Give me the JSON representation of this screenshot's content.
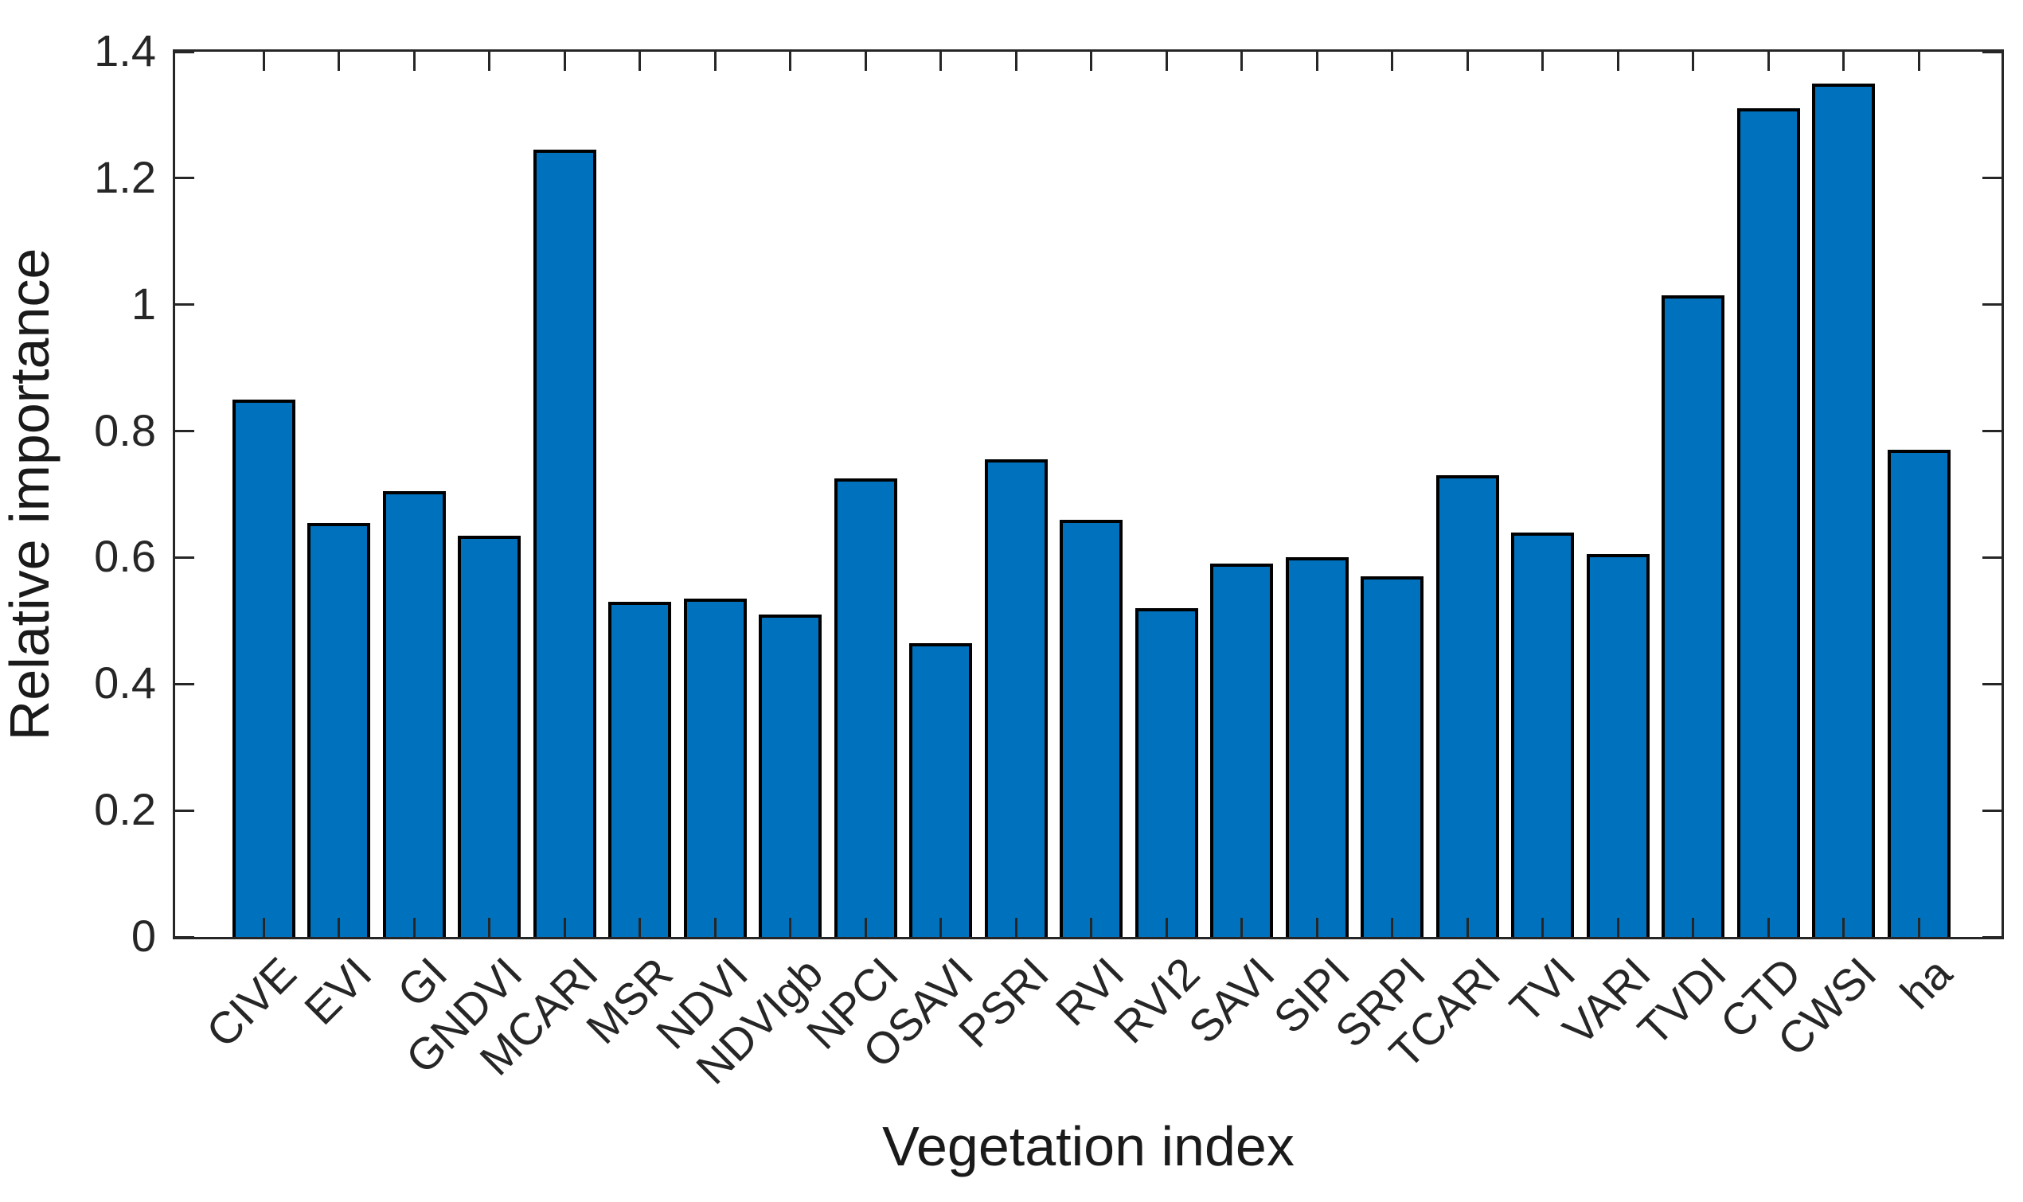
{
  "chart_data": {
    "type": "bar",
    "title": "",
    "xlabel": "Vegetation index",
    "ylabel": "Relative importance",
    "categories": [
      "CIVE",
      "EVI",
      "GI",
      "GNDVI",
      "MCARI",
      "MSR",
      "NDVI",
      "NDVIgb",
      "NPCI",
      "OSAVI",
      "PSRI",
      "RVI",
      "RVI2",
      "SAVI",
      "SIPI",
      "SRPI",
      "TCARI",
      "TVI",
      "VARI",
      "TVDI",
      "CTD",
      "CWSI",
      "ha"
    ],
    "values": [
      0.85,
      0.655,
      0.705,
      0.635,
      1.245,
      0.53,
      0.535,
      0.51,
      0.725,
      0.465,
      0.755,
      0.66,
      0.52,
      0.59,
      0.6,
      0.57,
      0.73,
      0.64,
      0.605,
      1.015,
      1.31,
      1.35,
      0.77
    ],
    "ylim": [
      0,
      1.4
    ],
    "yticks": [
      0,
      0.2,
      0.4,
      0.6,
      0.8,
      1,
      1.2,
      1.4
    ],
    "ytick_labels": [
      "0",
      "0.2",
      "0.4",
      "0.6",
      "0.8",
      "1",
      "1.2",
      "1.4"
    ],
    "xtick_rotation_deg": 45,
    "grid": "off",
    "legend": "none",
    "bar_fill_color": "#0072BD",
    "bar_edge_color": "#000000",
    "axis_color": "#262626"
  }
}
